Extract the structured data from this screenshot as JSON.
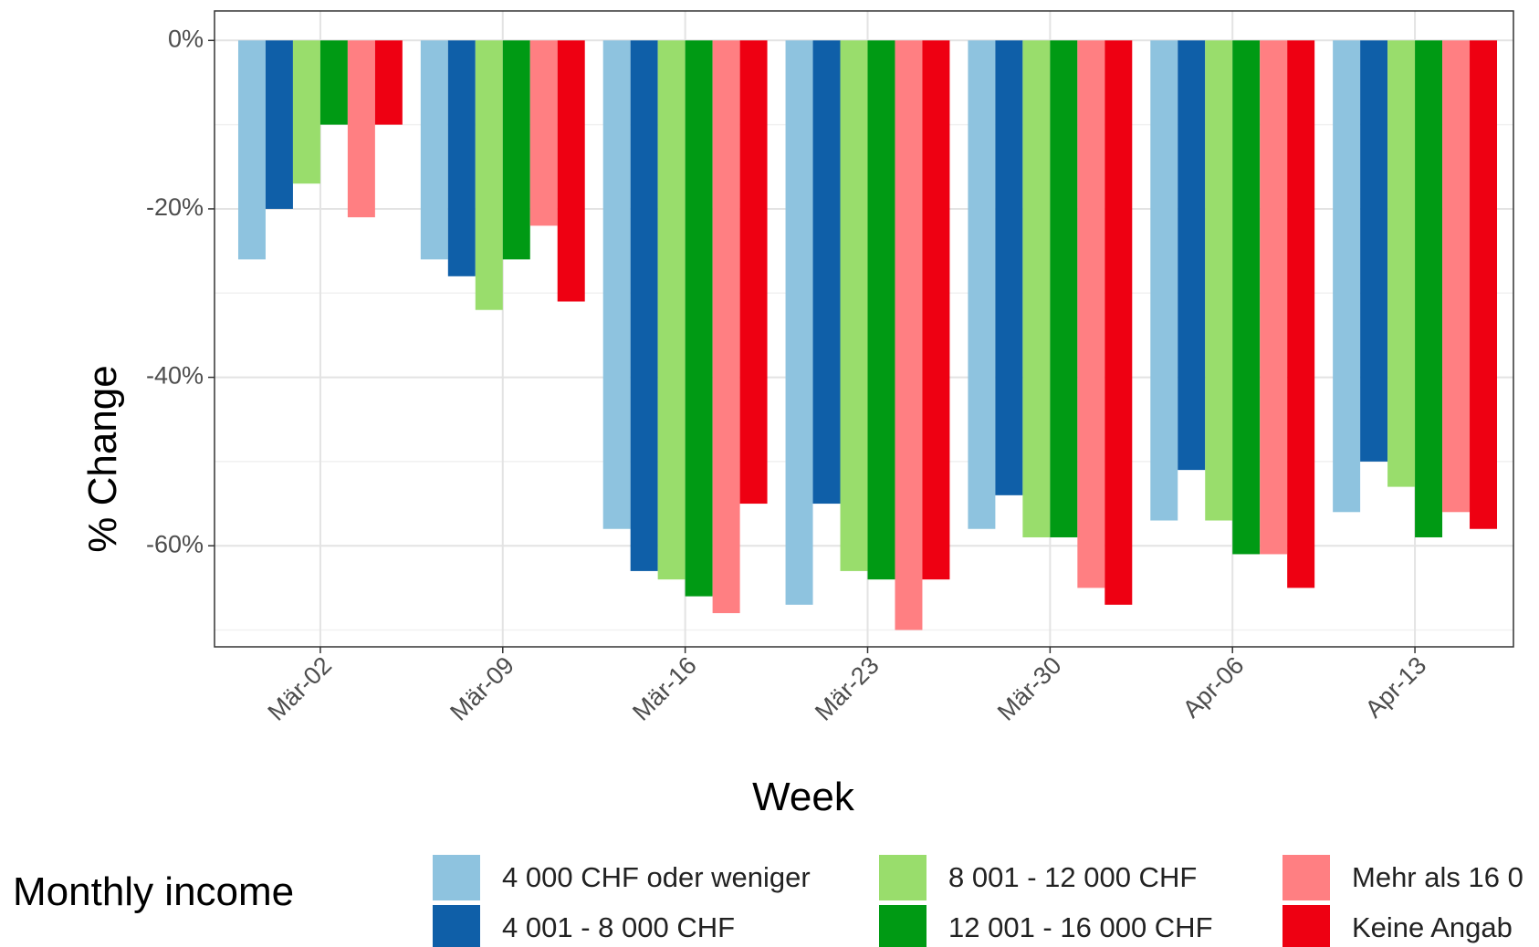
{
  "chart_data": {
    "type": "bar",
    "xlabel": "Week",
    "ylabel": "% Change",
    "ylim": [
      -0.72,
      0.035
    ],
    "yticks": [
      0,
      -0.2,
      -0.4,
      -0.6
    ],
    "ytick_labels": [
      "0%",
      "-20%",
      "-40%",
      "-60%"
    ],
    "grid": true,
    "categories": [
      "Mär-02",
      "Mär-09",
      "Mär-16",
      "Mär-23",
      "Mär-30",
      "Apr-06",
      "Apr-13"
    ],
    "legend_title": "Monthly income",
    "legend_position": "bottom",
    "series": [
      {
        "name": "4 000 CHF oder weniger",
        "color": "#8ec3df",
        "values": [
          -0.26,
          -0.26,
          -0.58,
          -0.67,
          -0.58,
          -0.57,
          -0.56
        ]
      },
      {
        "name": "4 001 - 8 000 CHF",
        "color": "#0f5fa8",
        "values": [
          -0.2,
          -0.28,
          -0.63,
          -0.55,
          -0.54,
          -0.51,
          -0.5
        ]
      },
      {
        "name": "8 001 - 12 000 CHF",
        "color": "#99dd6c",
        "values": [
          -0.17,
          -0.32,
          -0.64,
          -0.63,
          -0.59,
          -0.57,
          -0.53
        ]
      },
      {
        "name": "12 001 - 16 000 CHF",
        "color": "#009a14",
        "values": [
          -0.1,
          -0.26,
          -0.66,
          -0.64,
          -0.59,
          -0.61,
          -0.59
        ]
      },
      {
        "name": "Mehr als 16 0",
        "color": "#ff7f82",
        "values": [
          -0.21,
          -0.22,
          -0.68,
          -0.7,
          -0.65,
          -0.61,
          -0.56
        ]
      },
      {
        "name": "Keine Angab",
        "color": "#ee0012",
        "values": [
          -0.1,
          -0.31,
          -0.55,
          -0.64,
          -0.67,
          -0.65,
          -0.58
        ]
      }
    ]
  }
}
